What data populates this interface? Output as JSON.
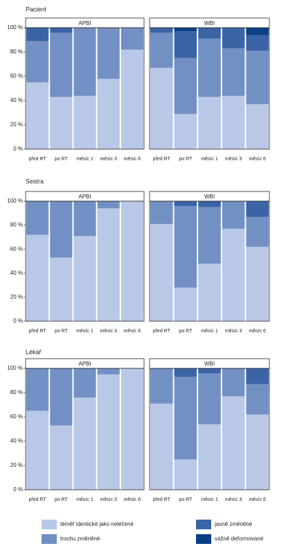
{
  "chart_data": [
    {
      "type": "bar",
      "stacked": true,
      "row_label": "Pacient",
      "title": "APBI",
      "categories": [
        "před RT",
        "po RT",
        "měsíc 1",
        "měsíc 3",
        "měsíc 6"
      ],
      "series": [
        {
          "name": "téměř identické jako neléčené",
          "color": "#b9c8e6",
          "values": [
            55,
            43,
            44,
            58,
            82
          ]
        },
        {
          "name": "trochu změněné",
          "color": "#7390c4",
          "values": [
            34,
            53,
            56,
            42,
            18
          ]
        },
        {
          "name": "jasně změněné",
          "color": "#3b64a6",
          "values": [
            11,
            4,
            0,
            0,
            0
          ]
        },
        {
          "name": "vážně deformované",
          "color": "#0a3f86",
          "values": [
            0,
            0,
            0,
            0,
            0
          ]
        }
      ],
      "ylim": [
        0,
        100
      ],
      "yticks": [
        {
          "value": 0,
          "label": "0 %"
        },
        {
          "value": 20,
          "label": "20 %"
        },
        {
          "value": 40,
          "label": "40 %"
        },
        {
          "value": 60,
          "label": "60 %"
        },
        {
          "value": 80,
          "label": "80 %"
        },
        {
          "value": 100,
          "label": "100 %"
        }
      ]
    },
    {
      "type": "bar",
      "stacked": true,
      "title": "WBI",
      "categories": [
        "před RT",
        "po RT",
        "měsíc 1",
        "měsíc 3",
        "měsíc 6"
      ],
      "series": [
        {
          "name": "téměř identické jako neléčené",
          "color": "#b9c8e6",
          "values": [
            67,
            29,
            43,
            44,
            37
          ]
        },
        {
          "name": "trochu změněné",
          "color": "#7390c4",
          "values": [
            29,
            46,
            48,
            39,
            44
          ]
        },
        {
          "name": "jasně změněné",
          "color": "#3b64a6",
          "values": [
            4,
            22,
            9,
            17,
            13
          ]
        },
        {
          "name": "vážně deformované",
          "color": "#0a3f86",
          "values": [
            0,
            3,
            0,
            0,
            6
          ]
        }
      ],
      "ylim": [
        0,
        100
      ]
    },
    {
      "type": "bar",
      "stacked": true,
      "row_label": "Sestra",
      "title": "APBI",
      "categories": [
        "před RT",
        "po RT",
        "měsíc 1",
        "měsíc 3",
        "měsíc 6"
      ],
      "series": [
        {
          "name": "téměř identické jako neléčené",
          "color": "#b9c8e6",
          "values": [
            72,
            53,
            71,
            94,
            100
          ]
        },
        {
          "name": "trochu změněné",
          "color": "#7390c4",
          "values": [
            28,
            47,
            29,
            6,
            0
          ]
        },
        {
          "name": "jasně změněné",
          "color": "#3b64a6",
          "values": [
            0,
            0,
            0,
            0,
            0
          ]
        },
        {
          "name": "vážně deformované",
          "color": "#0a3f86",
          "values": [
            0,
            0,
            0,
            0,
            0
          ]
        }
      ],
      "ylim": [
        0,
        100
      ],
      "yticks": [
        {
          "value": 0,
          "label": "0 %"
        },
        {
          "value": 20,
          "label": "20 %"
        },
        {
          "value": 40,
          "label": "40 %"
        },
        {
          "value": 60,
          "label": "60 %"
        },
        {
          "value": 80,
          "label": "80 %"
        },
        {
          "value": 100,
          "label": "100 %"
        }
      ]
    },
    {
      "type": "bar",
      "stacked": true,
      "title": "WBI",
      "categories": [
        "před RT",
        "po RT",
        "měsíc 1",
        "měsíc 3",
        "měsíc 6"
      ],
      "series": [
        {
          "name": "téměř identické jako neléčené",
          "color": "#b9c8e6",
          "values": [
            81,
            28,
            48,
            77,
            62
          ]
        },
        {
          "name": "trochu změněné",
          "color": "#7390c4",
          "values": [
            19,
            68,
            47,
            23,
            25
          ]
        },
        {
          "name": "jasně změněné",
          "color": "#3b64a6",
          "values": [
            0,
            4,
            5,
            0,
            13
          ]
        },
        {
          "name": "vážně deformované",
          "color": "#0a3f86",
          "values": [
            0,
            0,
            0,
            0,
            0
          ]
        }
      ],
      "ylim": [
        0,
        100
      ]
    },
    {
      "type": "bar",
      "stacked": true,
      "row_label": "Lékař",
      "title": "APBI",
      "categories": [
        "před RT",
        "po RT",
        "měsíc 1",
        "měsíc 3",
        "měsíc 6"
      ],
      "series": [
        {
          "name": "téměř identické jako neléčené",
          "color": "#b9c8e6",
          "values": [
            65,
            53,
            76,
            95,
            100
          ]
        },
        {
          "name": "trochu změněné",
          "color": "#7390c4",
          "values": [
            35,
            47,
            24,
            5,
            0
          ]
        },
        {
          "name": "jasně změněné",
          "color": "#3b64a6",
          "values": [
            0,
            0,
            0,
            0,
            0
          ]
        },
        {
          "name": "vážně deformované",
          "color": "#0a3f86",
          "values": [
            0,
            0,
            0,
            0,
            0
          ]
        }
      ],
      "ylim": [
        0,
        100
      ],
      "yticks": [
        {
          "value": 0,
          "label": "0 %"
        },
        {
          "value": 20,
          "label": "20 %"
        },
        {
          "value": 40,
          "label": "40 %"
        },
        {
          "value": 60,
          "label": "60 %"
        },
        {
          "value": 80,
          "label": "80 %"
        },
        {
          "value": 100,
          "label": "100 %"
        }
      ]
    },
    {
      "type": "bar",
      "stacked": true,
      "title": "WBI",
      "categories": [
        "před RT",
        "po RT",
        "měsíc 1",
        "měsíc 3",
        "měsíc 6"
      ],
      "series": [
        {
          "name": "téměř identické jako neléčené",
          "color": "#b9c8e6",
          "values": [
            71,
            25,
            54,
            77,
            62
          ]
        },
        {
          "name": "trochu změněné",
          "color": "#7390c4",
          "values": [
            29,
            68,
            42,
            23,
            25
          ]
        },
        {
          "name": "jasně změněné",
          "color": "#3b64a6",
          "values": [
            0,
            7,
            4,
            0,
            13
          ]
        },
        {
          "name": "vážně deformované",
          "color": "#0a3f86",
          "values": [
            0,
            0,
            0,
            0,
            0
          ]
        }
      ],
      "ylim": [
        0,
        100
      ]
    }
  ]
}
